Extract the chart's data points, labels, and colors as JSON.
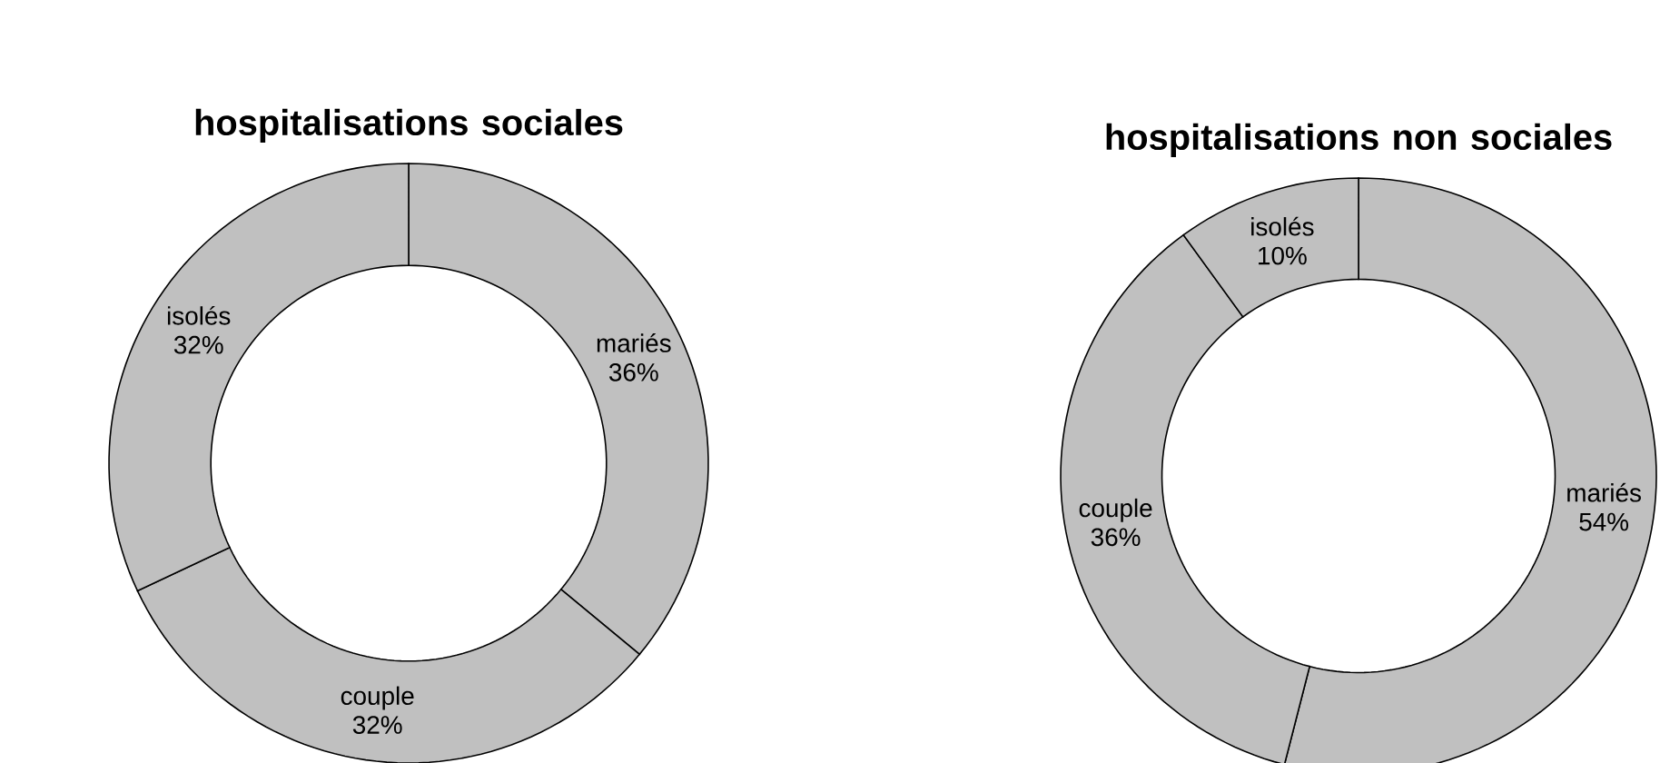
{
  "chart_data": [
    {
      "type": "donut",
      "title": "hospitalisations sociales",
      "categories": [
        "mariés",
        "couple",
        "isolés"
      ],
      "values": [
        36,
        32,
        32
      ],
      "value_labels": [
        "36%",
        "32%",
        "32%"
      ],
      "colors": [
        "#c0c0c0",
        "#c0c0c0",
        "#c0c0c0"
      ]
    },
    {
      "type": "donut",
      "title": "hospitalisations non sociales",
      "categories": [
        "mariés",
        "couple",
        "isolés"
      ],
      "values": [
        54,
        36,
        10
      ],
      "value_labels": [
        "54%",
        "36%",
        "10%"
      ],
      "colors": [
        "#c0c0c0",
        "#c0c0c0",
        "#c0c0c0"
      ]
    }
  ]
}
